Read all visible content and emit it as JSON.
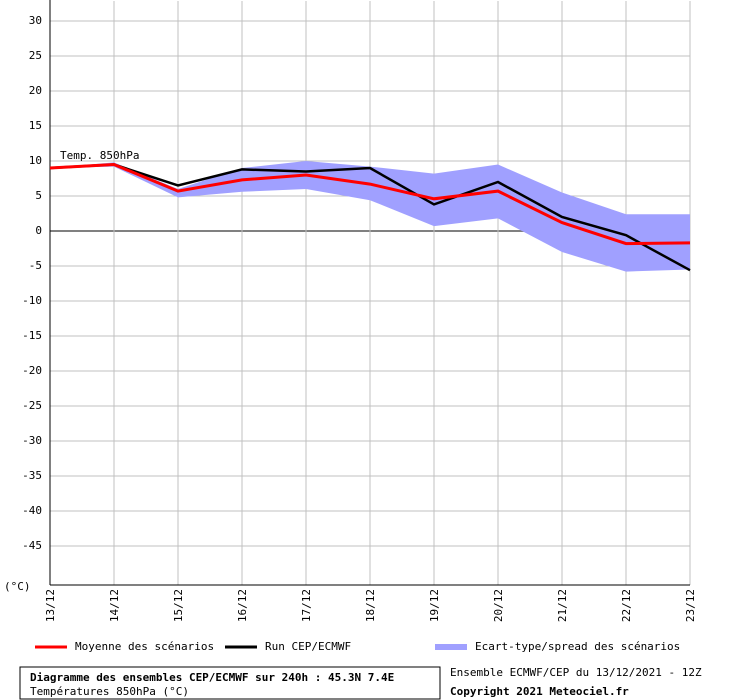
{
  "chart_data": {
    "type": "line",
    "annotation": "Temp. 850hPa",
    "y_unit": "(°C)",
    "categories": [
      "13/12",
      "14/12",
      "15/12",
      "16/12",
      "17/12",
      "18/12",
      "19/12",
      "20/12",
      "21/12",
      "22/12",
      "23/12"
    ],
    "series": [
      {
        "name": "Moyenne des scénarios",
        "color": "#ff0000",
        "values": [
          9,
          9.5,
          5.7,
          7.3,
          8,
          6.7,
          4.6,
          5.7,
          1.2,
          -1.8,
          -1.7
        ]
      },
      {
        "name": "Run CEP/ECMWF",
        "color": "#000000",
        "values": [
          9,
          9.5,
          6.5,
          8.8,
          8.5,
          9,
          3.8,
          7,
          2,
          -0.6,
          -5.6
        ]
      }
    ],
    "band": {
      "name": "Ecart-type/spread des scénarios",
      "color": "#a0a0ff",
      "upper": [
        9,
        9.8,
        6,
        9,
        10,
        9.2,
        8.2,
        9.5,
        5.5,
        2.4,
        2.4
      ],
      "lower": [
        9,
        9.2,
        4.8,
        5.6,
        6,
        4.4,
        0.7,
        1.8,
        -3,
        -5.8,
        -5.5
      ]
    },
    "ylim": [
      -50,
      30
    ],
    "yticks": [
      30,
      25,
      20,
      15,
      10,
      5,
      0,
      -5,
      -10,
      -15,
      -20,
      -25,
      -30,
      -35,
      -40,
      -45
    ],
    "grid": true,
    "title": "Diagramme des ensembles CEP/ECMWF sur 240h : 45.3N 7.4E",
    "subtitle": "Températures 850hPa (°C)",
    "run_info": "Ensemble ECMWF/CEP du 13/12/2021 - 12Z",
    "copyright": "Copyright 2021 Meteociel.fr"
  }
}
